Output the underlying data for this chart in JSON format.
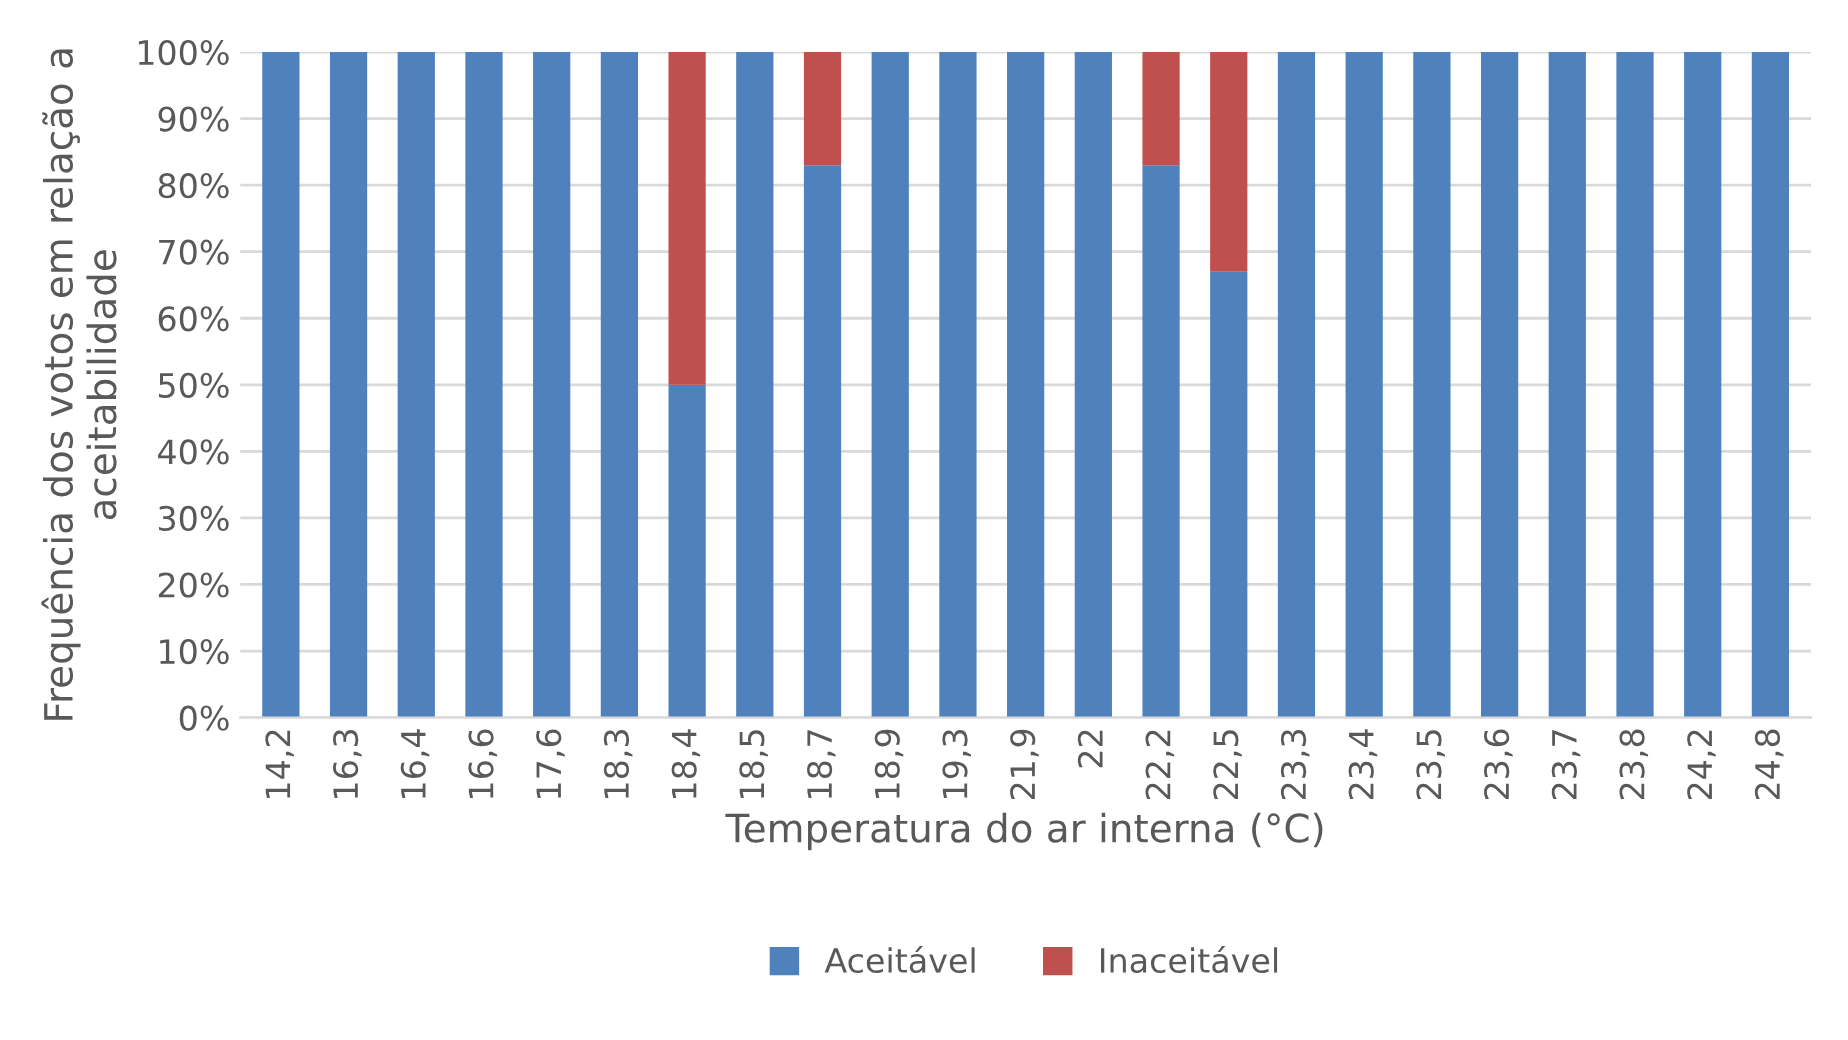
{
  "chart_data": {
    "type": "bar",
    "stacked": true,
    "xlabel": "Temperatura do ar interna (°C)",
    "ylabel": "Frequência dos votos em relação a aceitabilidade",
    "categories": [
      "14,2",
      "16,3",
      "16,4",
      "16,6",
      "17,6",
      "18,3",
      "18,4",
      "18,5",
      "18,7",
      "18,9",
      "19,3",
      "21,9",
      "22",
      "22,2",
      "22,5",
      "23,3",
      "23,4",
      "23,5",
      "23,6",
      "23,7",
      "23,8",
      "24,2",
      "24,8"
    ],
    "series": [
      {
        "name": "Aceitável",
        "color": "#4f81bd",
        "values": [
          100,
          100,
          100,
          100,
          100,
          100,
          50,
          100,
          83,
          100,
          100,
          100,
          100,
          83,
          67,
          100,
          100,
          100,
          100,
          100,
          100,
          100,
          100
        ]
      },
      {
        "name": "Inaceitável",
        "color": "#c0504d",
        "values": [
          null,
          null,
          null,
          null,
          null,
          null,
          50,
          null,
          17,
          null,
          null,
          null,
          null,
          17,
          33,
          null,
          null,
          null,
          null,
          null,
          null,
          null,
          null
        ]
      }
    ],
    "ylim": [
      0,
      100
    ],
    "yticks": [
      {
        "value": 0,
        "label": "0%"
      },
      {
        "value": 10,
        "label": "10%"
      },
      {
        "value": 20,
        "label": "20%"
      },
      {
        "value": 30,
        "label": "30%"
      },
      {
        "value": 40,
        "label": "40%"
      },
      {
        "value": 50,
        "label": "50%"
      },
      {
        "value": 60,
        "label": "60%"
      },
      {
        "value": 70,
        "label": "70%"
      },
      {
        "value": 80,
        "label": "80%"
      },
      {
        "value": 90,
        "label": "90%"
      },
      {
        "value": 100,
        "label": "100%"
      }
    ],
    "grid": "y",
    "legend": "bottom"
  }
}
